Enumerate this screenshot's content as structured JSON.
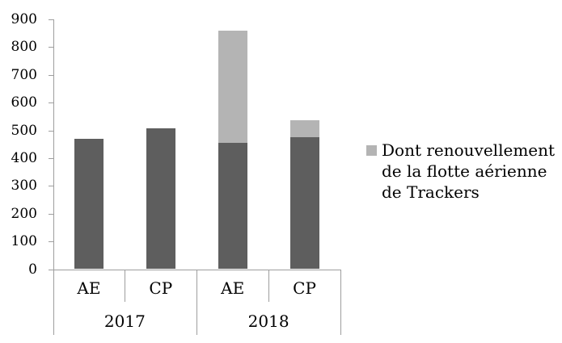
{
  "chart_data": {
    "type": "bar",
    "stacked": true,
    "title": "",
    "xlabel": "",
    "ylabel": "",
    "ylim": [
      0,
      900
    ],
    "yticks": [
      0,
      100,
      200,
      300,
      400,
      500,
      600,
      700,
      800,
      900
    ],
    "grid": false,
    "legend_position": "right",
    "groups": [
      "2017",
      "2018"
    ],
    "categories": [
      "AE",
      "CP",
      "AE",
      "CP"
    ],
    "category_groups": [
      "2017",
      "2017",
      "2018",
      "2018"
    ],
    "series": [
      {
        "name": "",
        "color": "#5e5e5e",
        "values": [
          470,
          508,
          455,
          474
        ]
      },
      {
        "name": "Dont renouvellement de la flotte aérienne de Trackers",
        "color": "#b4b4b4",
        "values": [
          0,
          0,
          403,
          63
        ]
      }
    ],
    "totals": [
      470,
      508,
      858,
      537
    ]
  },
  "legend": {
    "marker_color": "#b4b4b4",
    "lines": [
      "Dont renouvellement",
      "de la flotte aérienne",
      "de Trackers"
    ]
  },
  "colors": {
    "bar_dark": "#5e5e5e",
    "bar_light": "#b4b4b4",
    "axis": "#9e9e9e",
    "text": "#000000",
    "background": "#ffffff"
  }
}
